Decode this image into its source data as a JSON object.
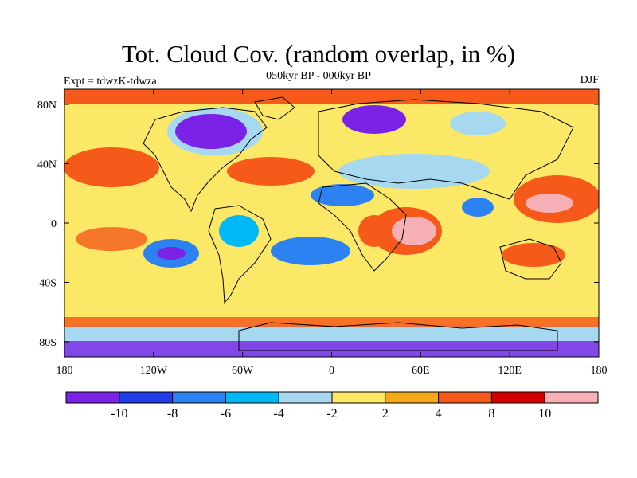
{
  "header": {
    "title": "Tot. Cloud Cov. (random overlap, in %)",
    "subtitle": "050kyr BP - 000kyr BP",
    "left_label": "Expt = tdwzK-tdwza",
    "right_label": "DJF"
  },
  "axes": {
    "x_ticks": [
      "180",
      "120W",
      "60W",
      "0",
      "60E",
      "120E",
      "180"
    ],
    "y_ticks": [
      "80N",
      "40N",
      "0",
      "40S",
      "80S"
    ]
  },
  "colorbar": {
    "colors": [
      "#7a22e6",
      "#1e3de6",
      "#2b82f0",
      "#00b8f5",
      "#a6d8f0",
      "#fbe866",
      "#f8a91a",
      "#f55a1a",
      "#d40000",
      "#f7b0b5"
    ],
    "labels": [
      "-10",
      "-8",
      "-6",
      "-4",
      "-2",
      "2",
      "4",
      "8",
      "10"
    ]
  },
  "map_colors": {
    "ocean_base": "#fbe866",
    "land_outline": "#000000"
  }
}
